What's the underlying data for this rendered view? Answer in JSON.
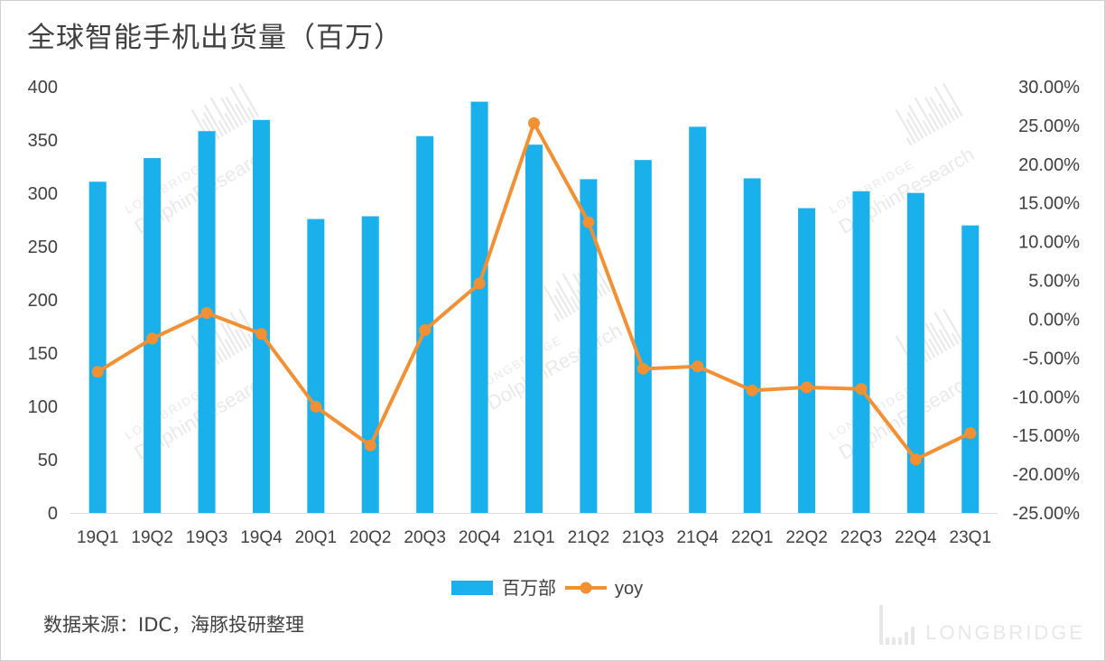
{
  "title": "全球智能手机出货量（百万）",
  "source": "数据来源：IDC，海豚投研整理",
  "watermark": {
    "brand": "LONGBRIDGE",
    "diag_top": "LONGBRIDGE",
    "diag_main": "DolphinResearch"
  },
  "colors": {
    "bar": "#1AB0EC",
    "line": "#F29033",
    "text": "#404040",
    "axis": "#d9d9d9",
    "watermark": "#d8d8d8"
  },
  "chart_data": {
    "type": "bar",
    "categories": [
      "19Q1",
      "19Q2",
      "19Q3",
      "19Q4",
      "20Q1",
      "20Q2",
      "20Q3",
      "20Q4",
      "21Q1",
      "21Q2",
      "21Q3",
      "21Q4",
      "22Q1",
      "22Q2",
      "22Q3",
      "22Q4",
      "23Q1"
    ],
    "series": [
      {
        "name": "百万部",
        "type": "bar",
        "axis": "left",
        "values": [
          310.8,
          333.0,
          358.3,
          368.8,
          275.8,
          278.4,
          353.6,
          385.9,
          345.6,
          313.2,
          331.2,
          362.4,
          314.0,
          286.0,
          301.9,
          300.3,
          269.8
        ]
      },
      {
        "name": "yoy",
        "type": "line",
        "axis": "right",
        "values": [
          -6.8,
          -2.5,
          0.8,
          -1.9,
          -11.3,
          -16.3,
          -1.4,
          4.6,
          25.3,
          12.5,
          -6.4,
          -6.1,
          -9.2,
          -8.8,
          -9.0,
          -18.1,
          -14.7
        ]
      }
    ],
    "y_left": {
      "min": 0,
      "max": 400,
      "step": 50,
      "ticks": [
        "0",
        "50",
        "100",
        "150",
        "200",
        "250",
        "300",
        "350",
        "400"
      ]
    },
    "y_right": {
      "min": -25,
      "max": 30,
      "step": 5,
      "ticks": [
        "-25.00%",
        "-20.00%",
        "-15.00%",
        "-10.00%",
        "-5.00%",
        "0.00%",
        "5.00%",
        "10.00%",
        "15.00%",
        "20.00%",
        "25.00%",
        "30.00%"
      ]
    },
    "grid": false,
    "legend_position": "bottom"
  }
}
